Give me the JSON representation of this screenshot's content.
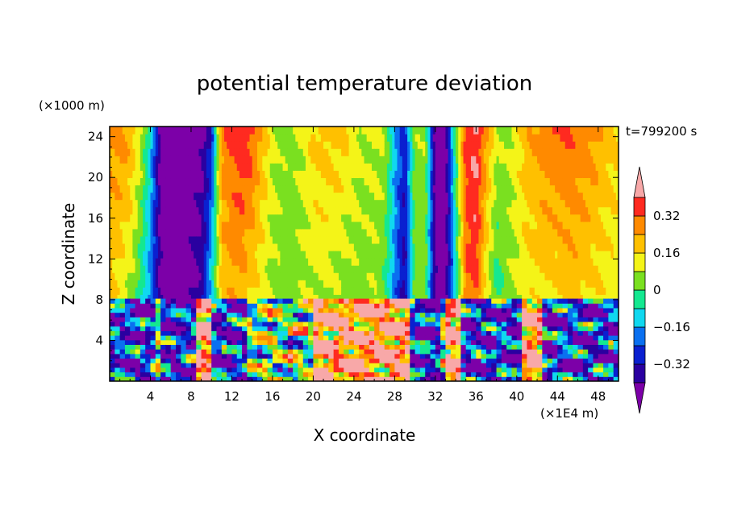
{
  "chart_data": {
    "type": "heatmap",
    "title": "potential temperature deviation",
    "xlabel": "X coordinate",
    "ylabel": "Z coordinate",
    "x_unit": "(×1E4 m)",
    "y_unit": "(×1000 m)",
    "time_label": "t=799200 s",
    "xlim": [
      0,
      50
    ],
    "ylim": [
      0,
      25
    ],
    "x_ticks": [
      4,
      8,
      12,
      16,
      20,
      24,
      28,
      32,
      36,
      40,
      44,
      48
    ],
    "y_ticks": [
      4,
      8,
      12,
      16,
      20,
      24
    ],
    "colorbar": {
      "levels": [
        -0.4,
        -0.32,
        -0.24,
        -0.16,
        -0.08,
        0,
        0.08,
        0.16,
        0.24,
        0.32,
        0.4
      ],
      "colors": [
        "#7c00a8",
        "#2a00a0",
        "#0a20d0",
        "#0a70f0",
        "#10d8f0",
        "#14e890",
        "#7ae020",
        "#f4f418",
        "#ffc000",
        "#ff8a00",
        "#ff2a20",
        "#f8a8a8"
      ],
      "tick_labels": [
        {
          "value": -0.32,
          "label": "−0.32"
        },
        {
          "value": -0.16,
          "label": "−0.16"
        },
        {
          "value": 0,
          "label": "0"
        },
        {
          "value": 0.16,
          "label": "0.16"
        },
        {
          "value": 0.32,
          "label": "0.32"
        }
      ],
      "extend": "both"
    },
    "upper_layer": {
      "z_range": [
        7.8,
        25
      ],
      "columns": [
        {
          "x": 0,
          "v": [
            0.18,
            0.26
          ]
        },
        {
          "x": 1,
          "v": [
            0.12,
            0.28
          ]
        },
        {
          "x": 2,
          "v": [
            0.06,
            0.24
          ]
        },
        {
          "x": 3,
          "v": [
            -0.04,
            0.12
          ]
        },
        {
          "x": 4,
          "v": [
            -0.2,
            -0.1
          ]
        },
        {
          "x": 5,
          "v": [
            -0.42,
            -0.44
          ]
        },
        {
          "x": 6,
          "v": [
            -0.44,
            -0.44
          ]
        },
        {
          "x": 7,
          "v": [
            -0.44,
            -0.44
          ]
        },
        {
          "x": 8,
          "v": [
            -0.42,
            -0.44
          ]
        },
        {
          "x": 9,
          "v": [
            -0.36,
            -0.44
          ]
        },
        {
          "x": 10,
          "v": [
            -0.1,
            -0.3
          ]
        },
        {
          "x": 11,
          "v": [
            0.18,
            0.28
          ]
        },
        {
          "x": 12,
          "v": [
            0.22,
            0.34
          ]
        },
        {
          "x": 13,
          "v": [
            0.2,
            0.4
          ]
        },
        {
          "x": 14,
          "v": [
            0.16,
            0.34
          ]
        },
        {
          "x": 15,
          "v": [
            0.1,
            0.22
          ]
        },
        {
          "x": 16,
          "v": [
            0.06,
            0.1
          ]
        },
        {
          "x": 17,
          "v": [
            0.04,
            0.06
          ]
        },
        {
          "x": 18,
          "v": [
            0.04,
            0.05
          ]
        },
        {
          "x": 19,
          "v": [
            0.06,
            0.1
          ]
        },
        {
          "x": 20,
          "v": [
            0.08,
            0.18
          ]
        },
        {
          "x": 21,
          "v": [
            0.08,
            0.2
          ]
        },
        {
          "x": 22,
          "v": [
            0.06,
            0.2
          ]
        },
        {
          "x": 23,
          "v": [
            0.04,
            0.18
          ]
        },
        {
          "x": 24,
          "v": [
            0.04,
            0.12
          ]
        },
        {
          "x": 25,
          "v": [
            0.04,
            0.08
          ]
        },
        {
          "x": 26,
          "v": [
            0.06,
            0.1
          ]
        },
        {
          "x": 27,
          "v": [
            0.0,
            0.08
          ]
        },
        {
          "x": 28,
          "v": [
            -0.2,
            -0.14
          ]
        },
        {
          "x": 29,
          "v": [
            -0.36,
            -0.3
          ]
        },
        {
          "x": 30,
          "v": [
            0.02,
            0.06
          ]
        },
        {
          "x": 31,
          "v": [
            0.04,
            0.06
          ]
        },
        {
          "x": 32,
          "v": [
            -0.42,
            -0.44
          ]
        },
        {
          "x": 33,
          "v": [
            -0.44,
            -0.44
          ]
        },
        {
          "x": 34,
          "v": [
            -0.1,
            0.0
          ]
        },
        {
          "x": 35,
          "v": [
            0.3,
            0.36
          ]
        },
        {
          "x": 36,
          "v": [
            0.34,
            0.42
          ]
        },
        {
          "x": 37,
          "v": [
            0.1,
            0.26
          ]
        },
        {
          "x": 38,
          "v": [
            -0.04,
            0.1
          ]
        },
        {
          "x": 39,
          "v": [
            0.04,
            0.06
          ]
        },
        {
          "x": 40,
          "v": [
            0.08,
            0.14
          ]
        },
        {
          "x": 41,
          "v": [
            0.12,
            0.22
          ]
        },
        {
          "x": 42,
          "v": [
            0.14,
            0.26
          ]
        },
        {
          "x": 43,
          "v": [
            0.14,
            0.3
          ]
        },
        {
          "x": 44,
          "v": [
            0.14,
            0.32
          ]
        },
        {
          "x": 45,
          "v": [
            0.18,
            0.32
          ]
        },
        {
          "x": 46,
          "v": [
            0.18,
            0.3
          ]
        },
        {
          "x": 47,
          "v": [
            0.16,
            0.28
          ]
        },
        {
          "x": 48,
          "v": [
            0.14,
            0.24
          ]
        },
        {
          "x": 49,
          "v": [
            0.12,
            0.2
          ]
        },
        {
          "x": 50,
          "v": [
            0.1,
            0.18
          ]
        }
      ]
    },
    "lower_layer": {
      "z_range": [
        0,
        7.8
      ],
      "description_pattern": "turbulent",
      "warm_patches": [
        [
          8.5,
          9.5
        ],
        [
          20,
          29
        ],
        [
          33,
          34
        ],
        [
          40.5,
          42
        ]
      ],
      "cold_patches": [
        [
          0,
          4
        ],
        [
          5,
          8
        ],
        [
          9.5,
          13
        ],
        [
          29,
          32
        ],
        [
          34,
          40
        ],
        [
          42,
          50
        ]
      ]
    }
  }
}
